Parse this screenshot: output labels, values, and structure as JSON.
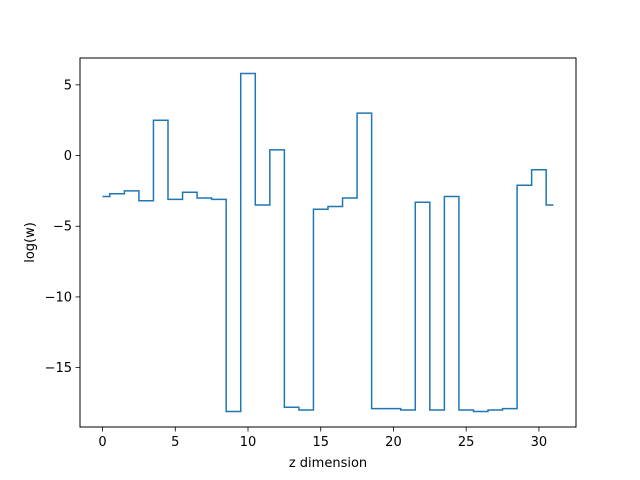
{
  "chart_data": {
    "type": "line",
    "drawstyle": "steps-mid",
    "title": "",
    "xlabel": "z dimension",
    "ylabel": "log(w)",
    "xlim": [
      -1.55,
      32.55
    ],
    "ylim": [
      -19.2,
      6.9
    ],
    "grid": false,
    "x_ticks": [
      0,
      5,
      10,
      15,
      20,
      25,
      30
    ],
    "x_tick_labels": [
      "0",
      "5",
      "10",
      "15",
      "20",
      "25",
      "30"
    ],
    "y_ticks": [
      -15,
      -10,
      -5,
      0,
      5
    ],
    "y_tick_labels": [
      "−15",
      "−10",
      "−5",
      "0",
      "5"
    ],
    "line_color": "#1f77b4",
    "series": [
      {
        "x": [
          0,
          1,
          2,
          3,
          4,
          5,
          6,
          7,
          8,
          9,
          10,
          11,
          12,
          13,
          14,
          15,
          16,
          17,
          18,
          19,
          20,
          21,
          22,
          23,
          24,
          25,
          26,
          27,
          28,
          29,
          30,
          31
        ],
        "values": [
          -2.9,
          -2.7,
          -2.5,
          -3.2,
          2.5,
          -3.1,
          -2.6,
          -3.0,
          -3.1,
          -18.1,
          5.8,
          -3.5,
          0.4,
          -17.8,
          -18.0,
          -3.8,
          -3.6,
          -3.0,
          3.0,
          -17.9,
          -17.9,
          -18.0,
          -3.3,
          -18.0,
          -2.9,
          -18.0,
          -18.1,
          -18.0,
          -17.9,
          -2.1,
          -1.0,
          -3.5
        ]
      }
    ]
  }
}
